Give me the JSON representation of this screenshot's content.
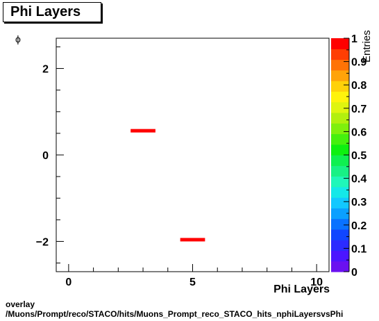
{
  "title": "Phi Layers",
  "footer": {
    "line1": "overlay",
    "line2": "/Muons/Prompt/reco/STACO/hits/Muons_Prompt_reco_STACO_hits_nphiLayersvsPhi"
  },
  "chart_data": {
    "type": "heatmap",
    "title": "Phi Layers",
    "xlabel": "Phi Layers",
    "ylabel": "ϕ",
    "zlabel": "Entries",
    "xlim": [
      -0.5,
      10.5
    ],
    "ylim": [
      -2.7,
      2.7
    ],
    "z_range": [
      0,
      1
    ],
    "x_ticks": [
      0,
      5,
      10
    ],
    "y_ticks": [
      -2,
      0,
      2
    ],
    "palette_ticks": [
      0,
      0.1,
      0.2,
      0.3,
      0.4,
      0.5,
      0.6,
      0.7,
      0.8,
      0.9,
      1
    ],
    "palette_tick_labels": [
      "0",
      "0.1",
      "0.2",
      "0.3",
      "0.4",
      "0.5",
      "0.6",
      "0.7",
      "0.8",
      "0.9",
      "1"
    ],
    "bins": [
      {
        "x0": 2.5,
        "x1": 3.5,
        "y0": 0.54,
        "y1": 0.6,
        "z": 1
      },
      {
        "x0": 4.5,
        "x1": 5.5,
        "y0": -1.98,
        "y1": -1.92,
        "z": 1
      }
    ],
    "palette_colors": [
      "#6a11f0",
      "#4b16ff",
      "#2b2bff",
      "#1046ff",
      "#0a72ff",
      "#0ba0ff",
      "#12c8ff",
      "#14e8e8",
      "#1ff7b9",
      "#18f185",
      "#0ff050",
      "#0ef010",
      "#45f00e",
      "#7ff00d",
      "#b2f00e",
      "#dff510",
      "#fff30c",
      "#ffd10a",
      "#ffa309",
      "#ff7306",
      "#ff3e03",
      "#ff0000"
    ],
    "grid": false
  }
}
